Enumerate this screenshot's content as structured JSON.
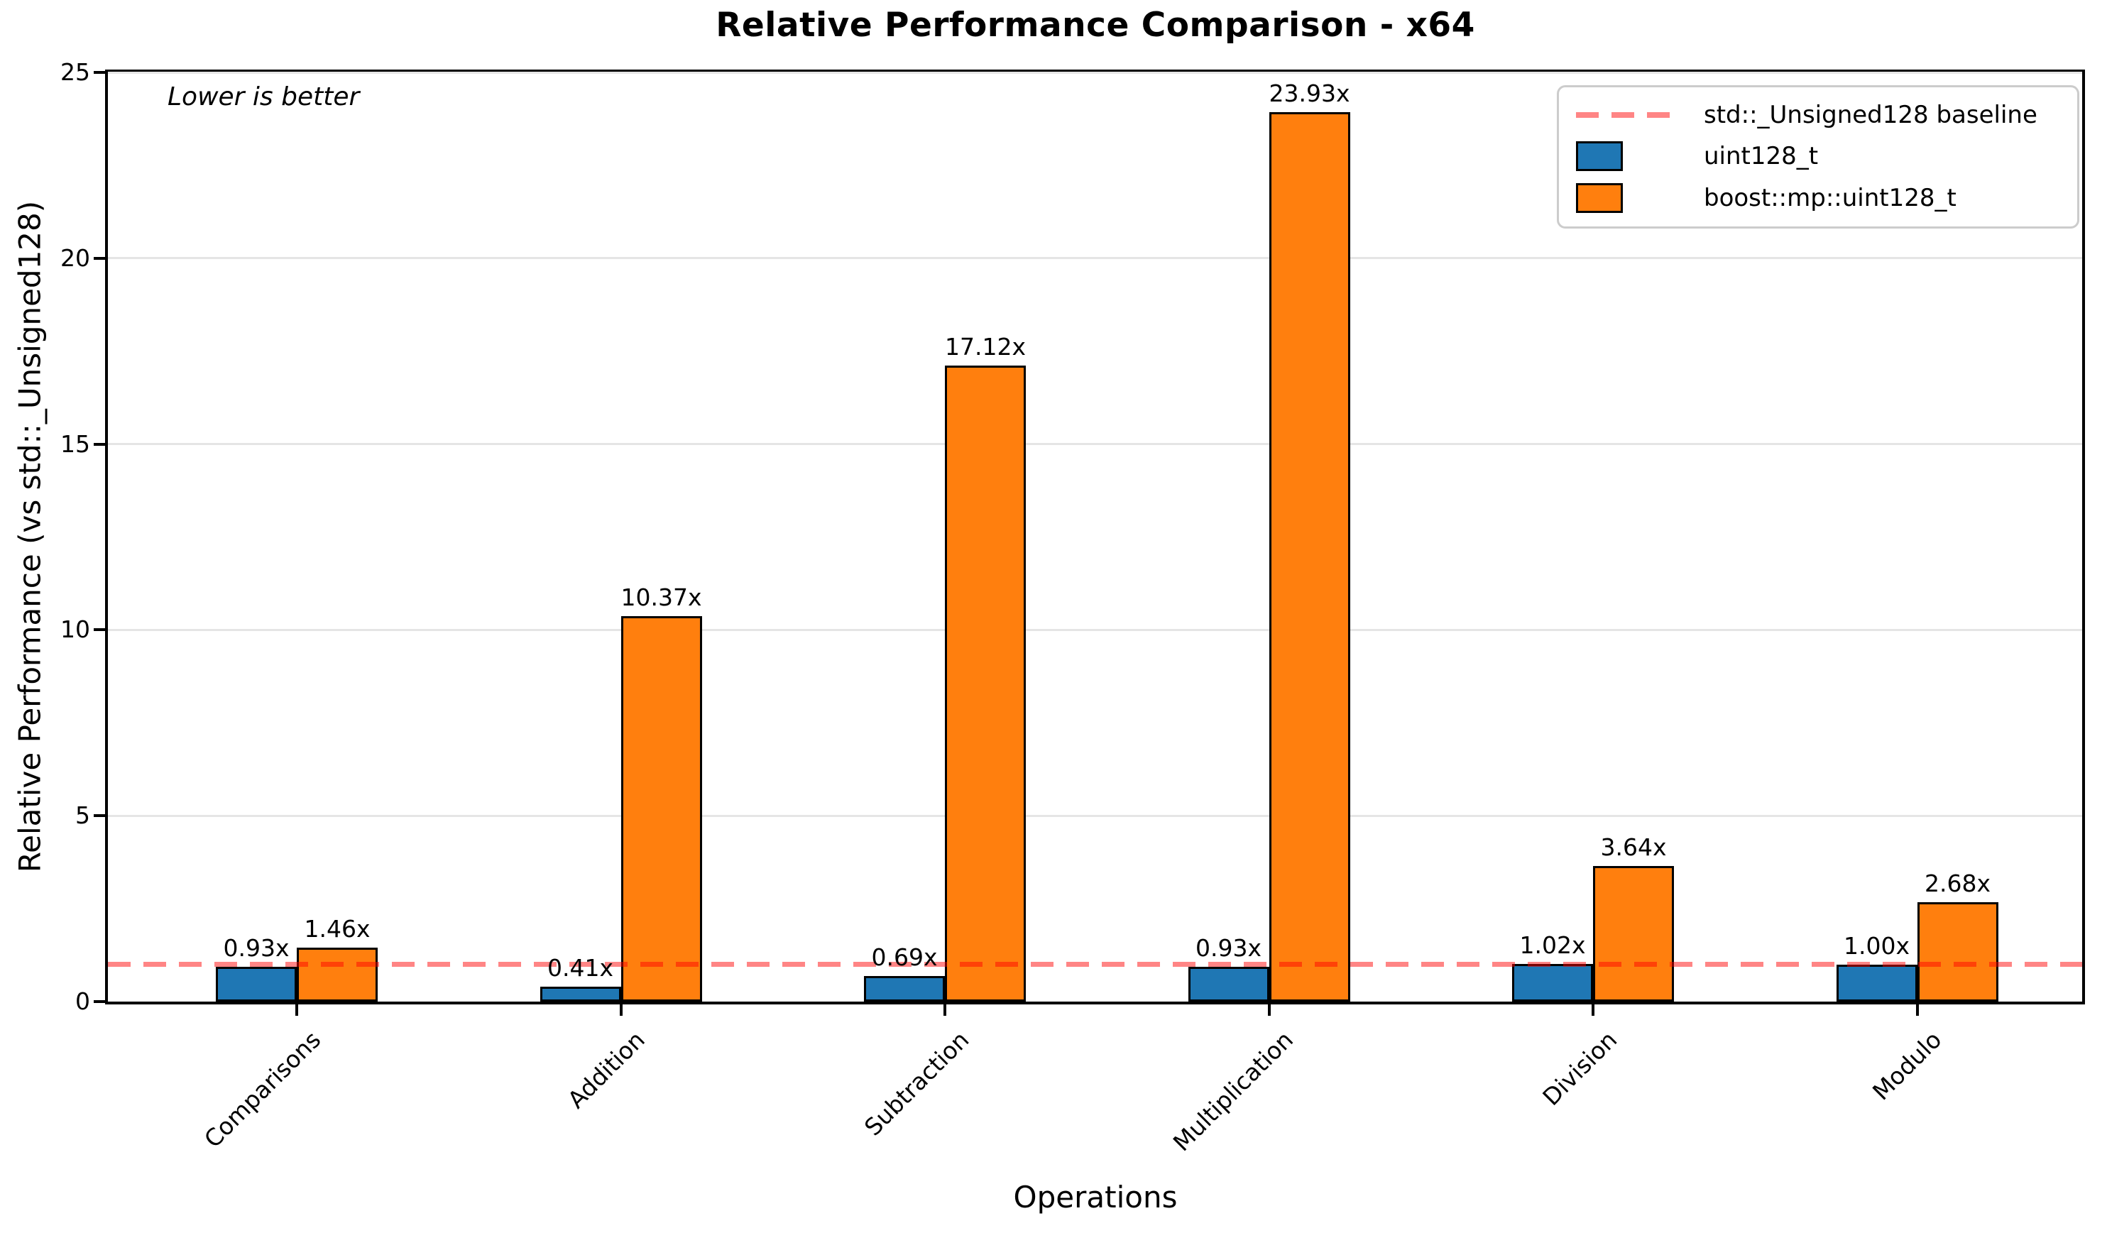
{
  "chart_data": {
    "type": "bar",
    "title": "Relative Performance Comparison - x64",
    "xlabel": "Operations",
    "ylabel": "Relative Performance (vs std::_Unsigned128)",
    "annotation": "Lower is better",
    "categories": [
      "Comparisons",
      "Addition",
      "Subtraction",
      "Multiplication",
      "Division",
      "Modulo"
    ],
    "series": [
      {
        "name": "uint128_t",
        "color": "#1f77b4",
        "values": [
          0.93,
          0.41,
          0.69,
          0.93,
          1.02,
          1.0
        ],
        "labels": [
          "0.93x",
          "0.41x",
          "0.69x",
          "0.93x",
          "1.02x",
          "1.00x"
        ]
      },
      {
        "name": "boost::mp::uint128_t",
        "color": "#ff7f0e",
        "values": [
          1.46,
          10.37,
          17.12,
          23.93,
          3.64,
          2.68
        ],
        "labels": [
          "1.46x",
          "10.37x",
          "17.12x",
          "23.93x",
          "3.64x",
          "2.68x"
        ]
      }
    ],
    "baseline": {
      "label": "std::_Unsigned128 baseline",
      "value": 1.0,
      "color": "#ff0000",
      "alpha": 0.48
    },
    "ylim": [
      0,
      25
    ],
    "yticks": [
      0,
      5,
      10,
      15,
      20,
      25
    ],
    "grid": "horizontal-y",
    "legend_position": "upper right",
    "bar_edge_color": "#000000",
    "gridline_color": "#e5e5e5"
  }
}
